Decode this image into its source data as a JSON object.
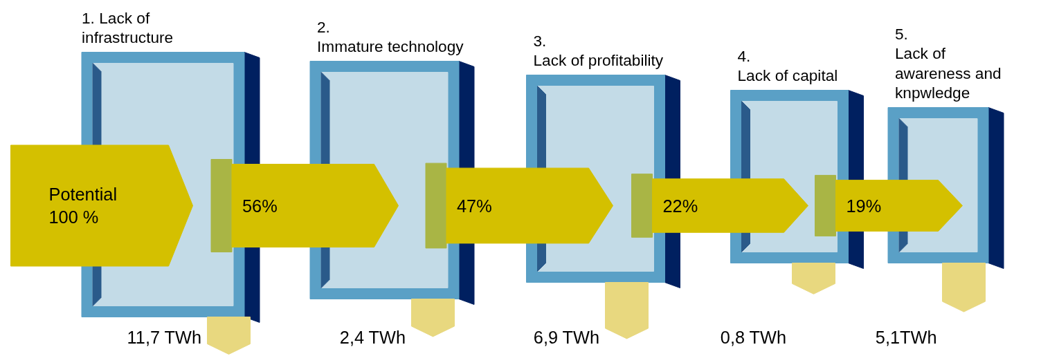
{
  "chart_data": {
    "type": "other",
    "categories": [
      "1. Lack of\ninfrastructure",
      "2.\nImmature technology",
      "3.\nLack  of profitability",
      "4.\nLack of capital",
      "5.\nLack of\nawareness and\nknpwledge"
    ],
    "series": [
      {
        "color": "#d4c000",
        "values": [
          100,
          56,
          47,
          22,
          19
        ],
        "value_labels": [
          "Potential\n100 %",
          "56%",
          "47%",
          "22%",
          "19%"
        ]
      },
      {
        "color": "#e8d87f",
        "values": [
          11.7,
          2.4,
          6.9,
          0.8,
          5.1
        ],
        "value_labels": [
          "11,7 TWh",
          "2,4 TWh",
          "6,9 TWh",
          "0,8 TWh",
          "5,1TWh"
        ]
      }
    ]
  }
}
